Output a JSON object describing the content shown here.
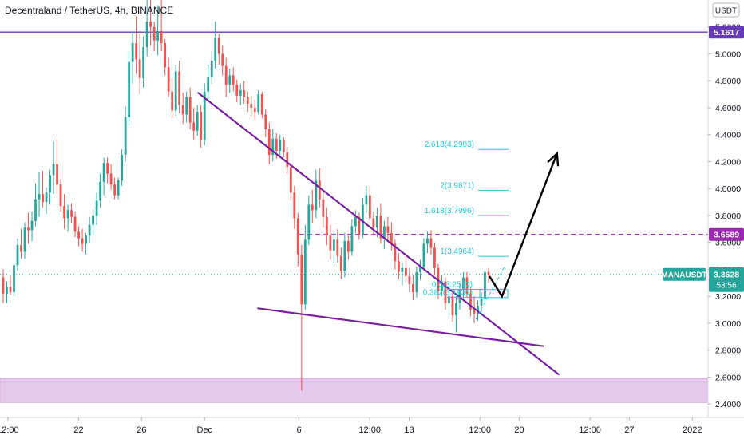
{
  "header": {
    "title": "Decentraland / TetherUS, 4h, BINANCE",
    "currency_label": "USDT"
  },
  "chart_data": {
    "type": "candlestick",
    "symbol": "MANAUSDT",
    "ylim": [
      2.3,
      5.4
    ],
    "y_ticks": [
      "2.4000",
      "2.6000",
      "2.8000",
      "3.0000",
      "3.2000",
      "3.4000",
      "3.6000",
      "3.8000",
      "4.0000",
      "4.2000",
      "4.4000",
      "4.6000",
      "4.8000",
      "5.0000",
      "5.2000"
    ],
    "x_ticks": [
      {
        "label": "12:00",
        "day": 17.5
      },
      {
        "label": "22",
        "day": 22
      },
      {
        "label": "26",
        "day": 26
      },
      {
        "label": "Dec",
        "day": 30
      },
      {
        "label": "6",
        "day": 36
      },
      {
        "label": "12:00",
        "day": 40.5
      },
      {
        "label": "13",
        "day": 43
      },
      {
        "label": "12:00",
        "day": 47.5
      },
      {
        "label": "20",
        "day": 50
      },
      {
        "label": "12:00",
        "day": 54.5
      },
      {
        "label": "27",
        "day": 57
      },
      {
        "label": "2022",
        "day": 61
      }
    ],
    "x_day_range": [
      17.0,
      62.0
    ],
    "price_levels": [
      {
        "label": "5.1617",
        "value": 5.1617,
        "color": "#673ab7",
        "style": "solid"
      },
      {
        "label": "3.6589",
        "value": 3.6589,
        "color": "#9c27b0",
        "style": "dashed"
      }
    ],
    "last_price": {
      "symbol": "MANAUSDT",
      "value": 3.3628,
      "label": "3.3628",
      "countdown": "53:56",
      "color": "#26a69a"
    },
    "support_zone": {
      "from": 2.41,
      "to": 2.59,
      "color": "#e1bee7"
    },
    "trendlines": [
      {
        "from": {
          "day": 29.6,
          "price": 4.71
        },
        "to": {
          "day": 52.5,
          "price": 2.62
        },
        "color": "#7b1fa2"
      },
      {
        "from": {
          "day": 33.4,
          "price": 3.11
        },
        "to": {
          "day": 51.5,
          "price": 2.83
        },
        "color": "#7b1fa2"
      }
    ],
    "fib_levels": [
      {
        "label": "2.618(4.2903)",
        "value": 4.2903
      },
      {
        "label": "2(3.9871)",
        "value": 3.9871
      },
      {
        "label": "1.618(3.7996)",
        "value": 3.7996
      },
      {
        "label": "1(3.4964)",
        "value": 3.4964
      },
      {
        "label": "0.5(3.2510)",
        "value": 3.251
      },
      {
        "label": "0.382(3.1931)",
        "value": 3.1931
      }
    ],
    "projection_arrow": [
      {
        "day": 48.1,
        "price": 3.35
      },
      {
        "day": 48.9,
        "price": 3.2
      },
      {
        "day": 52.4,
        "price": 4.26
      }
    ],
    "colors": {
      "up": "#26a69a",
      "down": "#ef5350",
      "fib": "#26c6da"
    },
    "candles": [
      {
        "o": 3.34,
        "h": 3.4,
        "l": 3.15,
        "c": 3.22
      },
      {
        "o": 3.22,
        "h": 3.31,
        "l": 3.15,
        "c": 3.27
      },
      {
        "o": 3.27,
        "h": 3.36,
        "l": 3.21,
        "c": 3.23
      },
      {
        "o": 3.23,
        "h": 3.45,
        "l": 3.2,
        "c": 3.43
      },
      {
        "o": 3.43,
        "h": 3.63,
        "l": 3.39,
        "c": 3.58
      },
      {
        "o": 3.58,
        "h": 3.7,
        "l": 3.48,
        "c": 3.53
      },
      {
        "o": 3.53,
        "h": 3.75,
        "l": 3.48,
        "c": 3.71
      },
      {
        "o": 3.71,
        "h": 3.82,
        "l": 3.59,
        "c": 3.69
      },
      {
        "o": 3.69,
        "h": 3.83,
        "l": 3.61,
        "c": 3.76
      },
      {
        "o": 3.76,
        "h": 4.04,
        "l": 3.72,
        "c": 3.92
      },
      {
        "o": 3.92,
        "h": 4.12,
        "l": 3.79,
        "c": 3.96
      },
      {
        "o": 3.96,
        "h": 4.13,
        "l": 3.86,
        "c": 3.9
      },
      {
        "o": 3.9,
        "h": 4.01,
        "l": 3.81,
        "c": 3.97
      },
      {
        "o": 3.97,
        "h": 4.14,
        "l": 3.88,
        "c": 4.1
      },
      {
        "o": 4.1,
        "h": 4.35,
        "l": 3.96,
        "c": 4.18
      },
      {
        "o": 4.18,
        "h": 4.37,
        "l": 3.96,
        "c": 4.03
      },
      {
        "o": 4.03,
        "h": 4.07,
        "l": 3.83,
        "c": 3.87
      },
      {
        "o": 3.87,
        "h": 3.96,
        "l": 3.7,
        "c": 3.78
      },
      {
        "o": 3.78,
        "h": 3.88,
        "l": 3.68,
        "c": 3.84
      },
      {
        "o": 3.84,
        "h": 3.89,
        "l": 3.74,
        "c": 3.79
      },
      {
        "o": 3.79,
        "h": 3.83,
        "l": 3.64,
        "c": 3.68
      },
      {
        "o": 3.68,
        "h": 3.72,
        "l": 3.57,
        "c": 3.63
      },
      {
        "o": 3.63,
        "h": 3.7,
        "l": 3.53,
        "c": 3.59
      },
      {
        "o": 3.59,
        "h": 3.67,
        "l": 3.51,
        "c": 3.65
      },
      {
        "o": 3.65,
        "h": 3.79,
        "l": 3.6,
        "c": 3.73
      },
      {
        "o": 3.73,
        "h": 3.84,
        "l": 3.65,
        "c": 3.8
      },
      {
        "o": 3.8,
        "h": 3.97,
        "l": 3.73,
        "c": 3.91
      },
      {
        "o": 3.91,
        "h": 4.11,
        "l": 3.86,
        "c": 4.05
      },
      {
        "o": 4.05,
        "h": 4.23,
        "l": 3.95,
        "c": 4.19
      },
      {
        "o": 4.19,
        "h": 4.23,
        "l": 4.04,
        "c": 4.11
      },
      {
        "o": 4.11,
        "h": 4.18,
        "l": 3.99,
        "c": 4.03
      },
      {
        "o": 4.03,
        "h": 4.08,
        "l": 3.92,
        "c": 3.95
      },
      {
        "o": 3.95,
        "h": 4.08,
        "l": 3.92,
        "c": 4.06
      },
      {
        "o": 4.06,
        "h": 4.29,
        "l": 4.02,
        "c": 4.25
      },
      {
        "o": 4.25,
        "h": 4.61,
        "l": 4.2,
        "c": 4.53
      },
      {
        "o": 4.53,
        "h": 5.02,
        "l": 4.47,
        "c": 4.94
      },
      {
        "o": 4.94,
        "h": 5.16,
        "l": 4.78,
        "c": 5.08
      },
      {
        "o": 5.08,
        "h": 5.28,
        "l": 4.85,
        "c": 4.96
      },
      {
        "o": 4.96,
        "h": 5.15,
        "l": 4.7,
        "c": 4.82
      },
      {
        "o": 4.82,
        "h": 5.13,
        "l": 4.75,
        "c": 5.05
      },
      {
        "o": 5.05,
        "h": 5.4,
        "l": 4.98,
        "c": 5.24
      },
      {
        "o": 5.24,
        "h": 5.4,
        "l": 5.06,
        "c": 5.2
      },
      {
        "o": 5.2,
        "h": 5.24,
        "l": 5.02,
        "c": 5.1
      },
      {
        "o": 5.1,
        "h": 5.36,
        "l": 4.99,
        "c": 5.17
      },
      {
        "o": 5.17,
        "h": 5.4,
        "l": 5.02,
        "c": 5.08
      },
      {
        "o": 5.08,
        "h": 5.11,
        "l": 4.84,
        "c": 4.9
      },
      {
        "o": 4.9,
        "h": 4.97,
        "l": 4.68,
        "c": 4.72
      },
      {
        "o": 4.72,
        "h": 4.82,
        "l": 4.52,
        "c": 4.58
      },
      {
        "o": 4.58,
        "h": 4.92,
        "l": 4.54,
        "c": 4.87
      },
      {
        "o": 4.87,
        "h": 4.95,
        "l": 4.56,
        "c": 4.62
      },
      {
        "o": 4.62,
        "h": 4.71,
        "l": 4.48,
        "c": 4.55
      },
      {
        "o": 4.55,
        "h": 4.72,
        "l": 4.49,
        "c": 4.68
      },
      {
        "o": 4.68,
        "h": 4.75,
        "l": 4.44,
        "c": 4.49
      },
      {
        "o": 4.49,
        "h": 4.6,
        "l": 4.36,
        "c": 4.43
      },
      {
        "o": 4.43,
        "h": 4.62,
        "l": 4.39,
        "c": 4.57
      },
      {
        "o": 4.57,
        "h": 4.62,
        "l": 4.3,
        "c": 4.36
      },
      {
        "o": 4.36,
        "h": 4.78,
        "l": 4.32,
        "c": 4.72
      },
      {
        "o": 4.72,
        "h": 4.92,
        "l": 4.65,
        "c": 4.83
      },
      {
        "o": 4.83,
        "h": 5.02,
        "l": 4.78,
        "c": 4.95
      },
      {
        "o": 4.95,
        "h": 5.24,
        "l": 4.89,
        "c": 5.12
      },
      {
        "o": 5.12,
        "h": 5.15,
        "l": 4.92,
        "c": 5.0
      },
      {
        "o": 5.0,
        "h": 5.06,
        "l": 4.84,
        "c": 4.91
      },
      {
        "o": 4.91,
        "h": 4.97,
        "l": 4.68,
        "c": 4.77
      },
      {
        "o": 4.77,
        "h": 4.89,
        "l": 4.71,
        "c": 4.84
      },
      {
        "o": 4.84,
        "h": 4.9,
        "l": 4.72,
        "c": 4.77
      },
      {
        "o": 4.77,
        "h": 4.81,
        "l": 4.64,
        "c": 4.69
      },
      {
        "o": 4.69,
        "h": 4.78,
        "l": 4.62,
        "c": 4.73
      },
      {
        "o": 4.73,
        "h": 4.8,
        "l": 4.63,
        "c": 4.68
      },
      {
        "o": 4.68,
        "h": 4.72,
        "l": 4.57,
        "c": 4.63
      },
      {
        "o": 4.63,
        "h": 4.69,
        "l": 4.54,
        "c": 4.6
      },
      {
        "o": 4.6,
        "h": 4.66,
        "l": 4.51,
        "c": 4.57
      },
      {
        "o": 4.57,
        "h": 4.73,
        "l": 4.55,
        "c": 4.7
      },
      {
        "o": 4.7,
        "h": 4.72,
        "l": 4.52,
        "c": 4.55
      },
      {
        "o": 4.55,
        "h": 4.59,
        "l": 4.38,
        "c": 4.44
      },
      {
        "o": 4.44,
        "h": 4.49,
        "l": 4.18,
        "c": 4.25
      },
      {
        "o": 4.25,
        "h": 4.44,
        "l": 4.2,
        "c": 4.37
      },
      {
        "o": 4.37,
        "h": 4.41,
        "l": 4.22,
        "c": 4.28
      },
      {
        "o": 4.28,
        "h": 4.4,
        "l": 4.24,
        "c": 4.36
      },
      {
        "o": 4.36,
        "h": 4.38,
        "l": 4.23,
        "c": 4.27
      },
      {
        "o": 4.27,
        "h": 4.31,
        "l": 4.11,
        "c": 4.16
      },
      {
        "o": 4.16,
        "h": 4.19,
        "l": 3.91,
        "c": 3.97
      },
      {
        "o": 3.97,
        "h": 4.02,
        "l": 3.7,
        "c": 3.78
      },
      {
        "o": 3.78,
        "h": 3.82,
        "l": 3.42,
        "c": 3.51
      },
      {
        "o": 3.51,
        "h": 3.58,
        "l": 2.5,
        "c": 3.14
      },
      {
        "o": 3.14,
        "h": 3.73,
        "l": 3.1,
        "c": 3.62
      },
      {
        "o": 3.62,
        "h": 3.95,
        "l": 3.58,
        "c": 3.88
      },
      {
        "o": 3.88,
        "h": 3.99,
        "l": 3.74,
        "c": 3.84
      },
      {
        "o": 3.84,
        "h": 4.14,
        "l": 3.78,
        "c": 4.06
      },
      {
        "o": 4.06,
        "h": 4.15,
        "l": 3.86,
        "c": 3.92
      },
      {
        "o": 3.92,
        "h": 3.99,
        "l": 3.71,
        "c": 3.79
      },
      {
        "o": 3.79,
        "h": 3.86,
        "l": 3.58,
        "c": 3.65
      },
      {
        "o": 3.65,
        "h": 3.73,
        "l": 3.47,
        "c": 3.54
      },
      {
        "o": 3.54,
        "h": 3.68,
        "l": 3.45,
        "c": 3.62
      },
      {
        "o": 3.62,
        "h": 3.7,
        "l": 3.45,
        "c": 3.5
      },
      {
        "o": 3.5,
        "h": 3.56,
        "l": 3.33,
        "c": 3.39
      },
      {
        "o": 3.39,
        "h": 3.67,
        "l": 3.34,
        "c": 3.61
      },
      {
        "o": 3.61,
        "h": 3.65,
        "l": 3.47,
        "c": 3.53
      },
      {
        "o": 3.53,
        "h": 3.77,
        "l": 3.5,
        "c": 3.72
      },
      {
        "o": 3.72,
        "h": 3.84,
        "l": 3.67,
        "c": 3.79
      },
      {
        "o": 3.79,
        "h": 3.82,
        "l": 3.62,
        "c": 3.66
      },
      {
        "o": 3.66,
        "h": 3.93,
        "l": 3.63,
        "c": 3.88
      },
      {
        "o": 3.88,
        "h": 4.02,
        "l": 3.82,
        "c": 3.95
      },
      {
        "o": 3.95,
        "h": 4.02,
        "l": 3.74,
        "c": 3.78
      },
      {
        "o": 3.78,
        "h": 3.83,
        "l": 3.66,
        "c": 3.71
      },
      {
        "o": 3.71,
        "h": 3.86,
        "l": 3.64,
        "c": 3.8
      },
      {
        "o": 3.8,
        "h": 3.89,
        "l": 3.59,
        "c": 3.63
      },
      {
        "o": 3.63,
        "h": 3.76,
        "l": 3.55,
        "c": 3.72
      },
      {
        "o": 3.72,
        "h": 3.79,
        "l": 3.61,
        "c": 3.67
      },
      {
        "o": 3.67,
        "h": 3.75,
        "l": 3.54,
        "c": 3.59
      },
      {
        "o": 3.59,
        "h": 3.62,
        "l": 3.4,
        "c": 3.46
      },
      {
        "o": 3.46,
        "h": 3.52,
        "l": 3.33,
        "c": 3.38
      },
      {
        "o": 3.38,
        "h": 3.45,
        "l": 3.28,
        "c": 3.41
      },
      {
        "o": 3.41,
        "h": 3.5,
        "l": 3.31,
        "c": 3.35
      },
      {
        "o": 3.35,
        "h": 3.41,
        "l": 3.23,
        "c": 3.29
      },
      {
        "o": 3.29,
        "h": 3.36,
        "l": 3.17,
        "c": 3.23
      },
      {
        "o": 3.23,
        "h": 3.42,
        "l": 3.19,
        "c": 3.38
      },
      {
        "o": 3.38,
        "h": 3.47,
        "l": 3.32,
        "c": 3.42
      },
      {
        "o": 3.42,
        "h": 3.63,
        "l": 3.39,
        "c": 3.59
      },
      {
        "o": 3.59,
        "h": 3.68,
        "l": 3.52,
        "c": 3.63
      },
      {
        "o": 3.63,
        "h": 3.69,
        "l": 3.51,
        "c": 3.56
      },
      {
        "o": 3.56,
        "h": 3.6,
        "l": 3.36,
        "c": 3.41
      },
      {
        "o": 3.41,
        "h": 3.44,
        "l": 3.18,
        "c": 3.24
      },
      {
        "o": 3.24,
        "h": 3.36,
        "l": 3.2,
        "c": 3.31
      },
      {
        "o": 3.31,
        "h": 3.34,
        "l": 3.1,
        "c": 3.15
      },
      {
        "o": 3.15,
        "h": 3.24,
        "l": 3.06,
        "c": 3.2
      },
      {
        "o": 3.2,
        "h": 3.24,
        "l": 3.01,
        "c": 3.06
      },
      {
        "o": 3.06,
        "h": 3.2,
        "l": 2.93,
        "c": 3.15
      },
      {
        "o": 3.15,
        "h": 3.3,
        "l": 3.1,
        "c": 3.25
      },
      {
        "o": 3.25,
        "h": 3.38,
        "l": 3.18,
        "c": 3.34
      },
      {
        "o": 3.34,
        "h": 3.38,
        "l": 3.19,
        "c": 3.22
      },
      {
        "o": 3.22,
        "h": 3.27,
        "l": 3.05,
        "c": 3.1
      },
      {
        "o": 3.1,
        "h": 3.2,
        "l": 3.0,
        "c": 3.07
      },
      {
        "o": 3.07,
        "h": 3.17,
        "l": 3.02,
        "c": 3.13
      },
      {
        "o": 3.13,
        "h": 3.23,
        "l": 3.08,
        "c": 3.18
      },
      {
        "o": 3.18,
        "h": 3.4,
        "l": 3.14,
        "c": 3.38
      },
      {
        "o": 3.38,
        "h": 3.41,
        "l": 3.3,
        "c": 3.36
      }
    ]
  }
}
